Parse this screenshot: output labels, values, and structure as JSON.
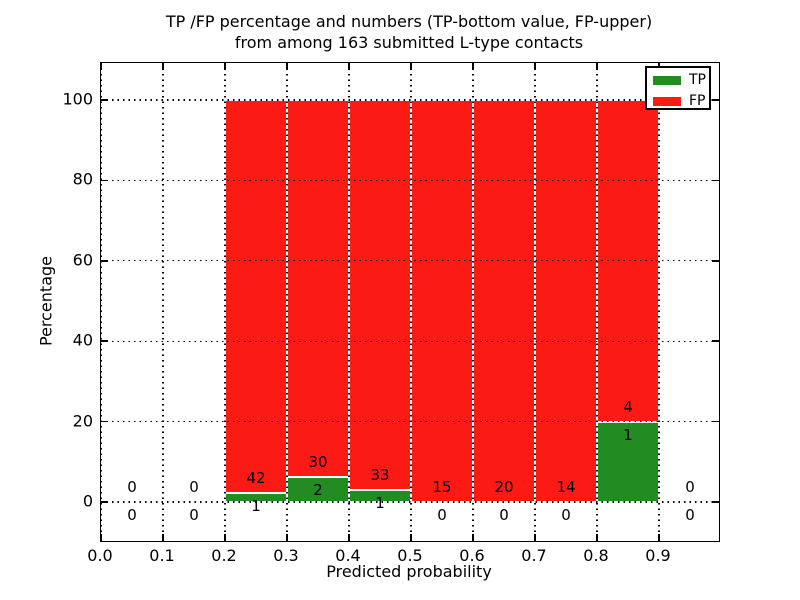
{
  "figure": {
    "background": "#ffffff",
    "title_line1": "TP /FP percentage and numbers (TP-bottom value, FP-upper)",
    "title_line2": "from among 163 submitted L-type contacts"
  },
  "chart_data": {
    "type": "bar",
    "subtype": "stacked-100-percent-histogram",
    "title": "TP /FP percentage and numbers (TP-bottom value, FP-upper)\nfrom among 163 submitted L-type contacts",
    "xlabel": "Predicted probability",
    "ylabel": "Percentage",
    "x_tick_labels": [
      "0.0",
      "0.1",
      "0.2",
      "0.3",
      "0.4",
      "0.5",
      "0.6",
      "0.7",
      "0.8",
      "0.9"
    ],
    "y_tick_values": [
      0,
      20,
      40,
      60,
      80,
      100
    ],
    "xlim": [
      0.0,
      1.0
    ],
    "ylim": [
      -10,
      109
    ],
    "grid": "dotted",
    "total_submitted": 163,
    "annotation_rule": "FP count shown above TP/FP boundary, TP count shown below",
    "legend": {
      "position": "upper-right",
      "entries": [
        {
          "label": "TP",
          "color": "#228b22"
        },
        {
          "label": "FP",
          "color": "#fb1b14"
        }
      ]
    },
    "bins": [
      {
        "x0": 0.0,
        "x1": 0.1,
        "tp": 0,
        "fp": 0
      },
      {
        "x0": 0.1,
        "x1": 0.2,
        "tp": 0,
        "fp": 0
      },
      {
        "x0": 0.2,
        "x1": 0.3,
        "tp": 1,
        "fp": 42
      },
      {
        "x0": 0.3,
        "x1": 0.4,
        "tp": 2,
        "fp": 30
      },
      {
        "x0": 0.4,
        "x1": 0.5,
        "tp": 1,
        "fp": 33
      },
      {
        "x0": 0.5,
        "x1": 0.6,
        "tp": 0,
        "fp": 15
      },
      {
        "x0": 0.6,
        "x1": 0.7,
        "tp": 0,
        "fp": 20
      },
      {
        "x0": 0.7,
        "x1": 0.8,
        "tp": 0,
        "fp": 14
      },
      {
        "x0": 0.8,
        "x1": 0.9,
        "tp": 1,
        "fp": 4
      },
      {
        "x0": 0.9,
        "x1": 1.0,
        "tp": 0,
        "fp": 0
      }
    ]
  }
}
